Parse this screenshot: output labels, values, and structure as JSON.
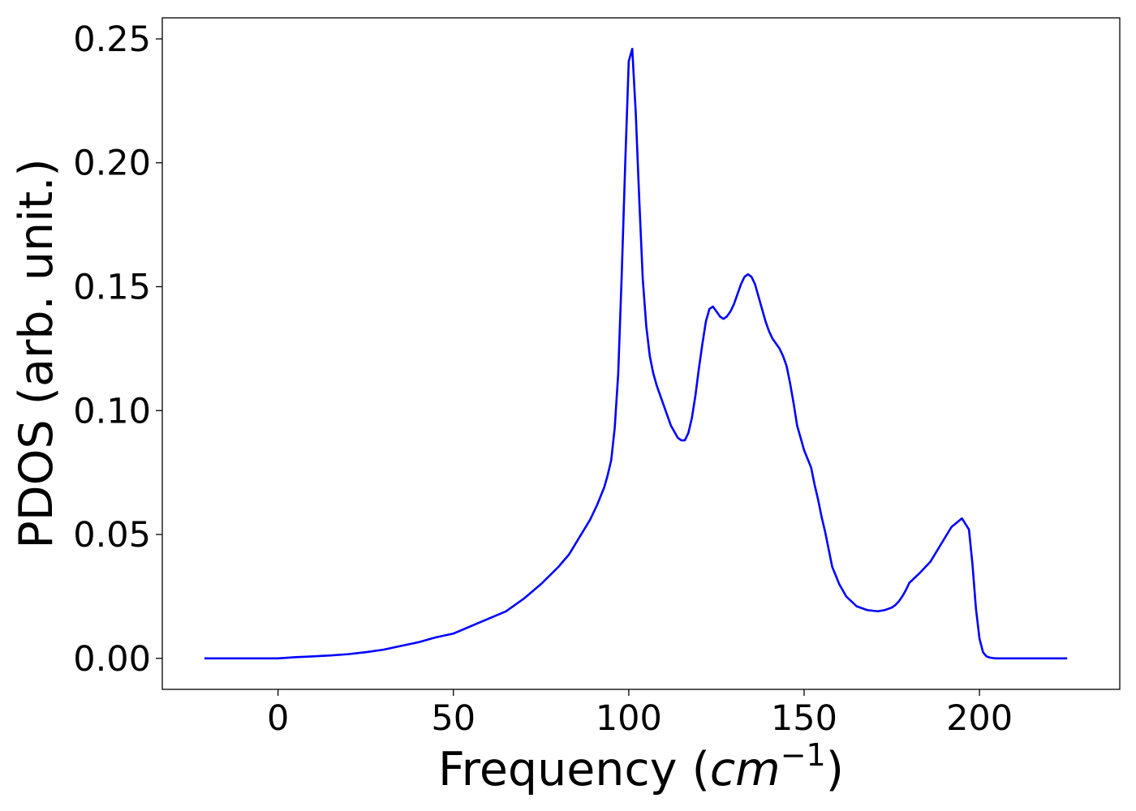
{
  "chart_data": {
    "type": "line",
    "xlabel_text": "Frequency (",
    "xlabel_math": "cm",
    "xlabel_sup": "−1",
    "xlabel_close": ")",
    "ylabel": "PDOS (arb. unit.)",
    "xlim": [
      -33,
      240
    ],
    "ylim": [
      -0.0125,
      0.2585
    ],
    "xticks": [
      0,
      50,
      100,
      150,
      200
    ],
    "xtick_labels": [
      "0",
      "50",
      "100",
      "150",
      "200"
    ],
    "yticks": [
      0.0,
      0.05,
      0.1,
      0.15,
      0.2,
      0.25
    ],
    "ytick_labels": [
      "0.00",
      "0.05",
      "0.10",
      "0.15",
      "0.20",
      "0.25"
    ],
    "grid": false,
    "series": [
      {
        "color": "#0000ff",
        "x": [
          -21,
          0,
          5,
          10,
          15,
          20,
          25,
          30,
          35,
          40,
          45,
          50,
          55,
          60,
          65,
          70,
          75,
          80,
          83,
          86,
          89,
          91,
          93,
          94,
          95,
          96,
          97,
          98,
          99,
          100,
          101,
          102,
          103,
          104,
          105,
          106,
          107,
          108,
          110,
          112,
          114,
          115,
          116,
          117,
          118,
          119,
          120,
          121,
          122,
          123,
          124,
          125,
          126,
          127,
          128,
          129,
          130,
          131,
          132,
          133,
          134,
          135,
          136,
          137,
          138,
          139,
          140,
          141,
          142,
          143,
          144,
          145,
          146,
          147,
          148,
          150,
          152,
          153,
          154,
          155,
          156,
          157,
          158,
          160,
          162,
          165,
          168,
          171,
          173,
          175,
          176,
          177,
          178,
          179,
          180,
          183,
          186,
          189,
          192,
          195,
          197,
          198,
          199,
          200,
          201,
          202,
          203,
          204,
          205,
          206,
          207,
          208,
          209,
          210,
          211,
          215,
          225
        ],
        "y": [
          0.0,
          0.0,
          0.0005,
          0.0008,
          0.0012,
          0.0017,
          0.0025,
          0.0035,
          0.005,
          0.0065,
          0.0085,
          0.01,
          0.013,
          0.016,
          0.019,
          0.024,
          0.03,
          0.037,
          0.042,
          0.049,
          0.056,
          0.062,
          0.069,
          0.074,
          0.08,
          0.093,
          0.115,
          0.155,
          0.2,
          0.241,
          0.246,
          0.22,
          0.185,
          0.153,
          0.134,
          0.122,
          0.115,
          0.11,
          0.102,
          0.094,
          0.089,
          0.088,
          0.088,
          0.091,
          0.097,
          0.106,
          0.117,
          0.127,
          0.136,
          0.141,
          0.142,
          0.14,
          0.138,
          0.137,
          0.138,
          0.14,
          0.143,
          0.147,
          0.151,
          0.154,
          0.155,
          0.154,
          0.151,
          0.146,
          0.141,
          0.136,
          0.132,
          0.129,
          0.127,
          0.125,
          0.122,
          0.118,
          0.111,
          0.103,
          0.094,
          0.084,
          0.077,
          0.07,
          0.064,
          0.057,
          0.051,
          0.044,
          0.037,
          0.03,
          0.025,
          0.021,
          0.0195,
          0.019,
          0.0195,
          0.0205,
          0.0215,
          0.023,
          0.025,
          0.0275,
          0.0305,
          0.0345,
          0.039,
          0.046,
          0.053,
          0.0565,
          0.052,
          0.038,
          0.02,
          0.008,
          0.0025,
          0.0008,
          0.0003,
          0.0001,
          0.0,
          0.0,
          0.0,
          0.0,
          0.0,
          0.0,
          0.0,
          0.0,
          0.0
        ]
      }
    ]
  }
}
